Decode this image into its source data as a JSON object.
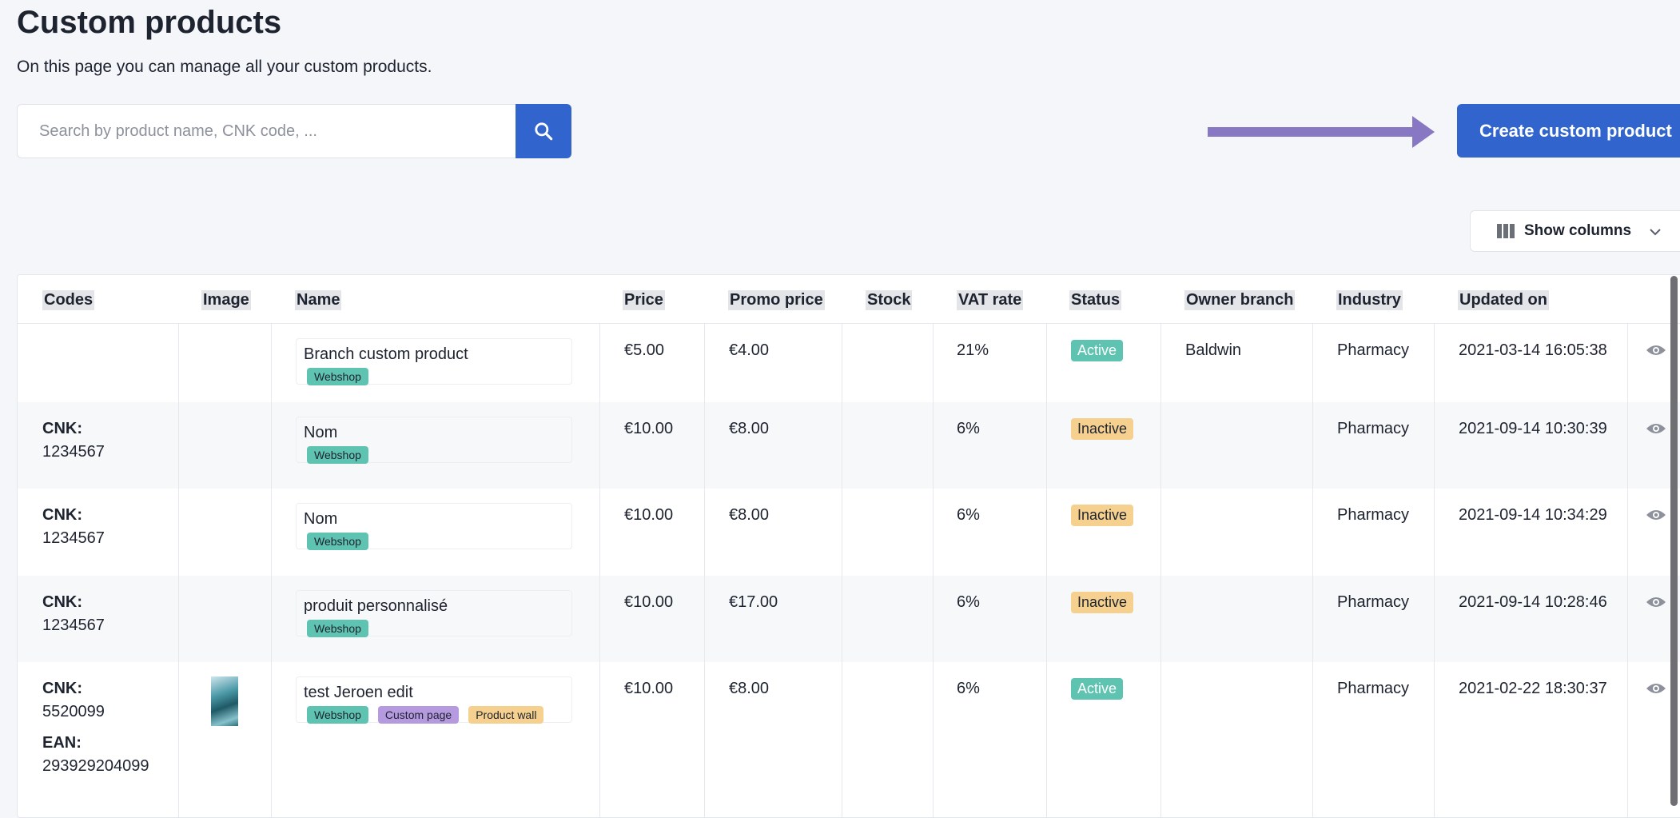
{
  "header": {
    "title": "Custom products",
    "subtitle": "On this page you can manage all your custom products."
  },
  "search": {
    "placeholder": "Search by product name, CNK code, ..."
  },
  "actions": {
    "create_label": "Create custom product",
    "show_columns_label": "Show columns"
  },
  "colors": {
    "primary": "#3164cc",
    "arrow": "#8878c3",
    "active": "#5ec3b0",
    "inactive": "#f5d08e",
    "custom_page": "#b59ae0"
  },
  "table": {
    "columns": [
      "Codes",
      "Image",
      "Name",
      "Price",
      "Promo price",
      "Stock",
      "VAT rate",
      "Status",
      "Owner branch",
      "Industry",
      "Updated on"
    ],
    "rows": [
      {
        "codes": [],
        "name": "Branch custom product",
        "tags": [
          "Webshop"
        ],
        "price": "€5.00",
        "promo": "€4.00",
        "stock": "",
        "vat": "21%",
        "status": "Active",
        "owner": "Baldwin",
        "industry": "Pharmacy",
        "updated": "2021-03-14 16:05:38"
      },
      {
        "codes": [
          {
            "label": "CNK:",
            "value": "1234567"
          }
        ],
        "name": "Nom",
        "tags": [
          "Webshop"
        ],
        "price": "€10.00",
        "promo": "€8.00",
        "stock": "",
        "vat": "6%",
        "status": "Inactive",
        "owner": "",
        "industry": "Pharmacy",
        "updated": "2021-09-14 10:30:39"
      },
      {
        "codes": [
          {
            "label": "CNK:",
            "value": "1234567"
          }
        ],
        "name": "Nom",
        "tags": [
          "Webshop"
        ],
        "price": "€10.00",
        "promo": "€8.00",
        "stock": "",
        "vat": "6%",
        "status": "Inactive",
        "owner": "",
        "industry": "Pharmacy",
        "updated": "2021-09-14 10:34:29"
      },
      {
        "codes": [
          {
            "label": "CNK:",
            "value": "1234567"
          }
        ],
        "name": "produit personnalisé",
        "tags": [
          "Webshop"
        ],
        "price": "€10.00",
        "promo": "€17.00",
        "stock": "",
        "vat": "6%",
        "status": "Inactive",
        "owner": "",
        "industry": "Pharmacy",
        "updated": "2021-09-14 10:28:46"
      },
      {
        "codes": [
          {
            "label": "CNK:",
            "value": "5520099"
          },
          {
            "label": "EAN:",
            "value": "293929204099"
          }
        ],
        "name": "test Jeroen edit",
        "tags": [
          "Webshop",
          "Custom page",
          "Product wall"
        ],
        "price": "€10.00",
        "promo": "€8.00",
        "stock": "",
        "vat": "6%",
        "status": "Active",
        "owner": "",
        "industry": "Pharmacy",
        "updated": "2021-02-22 18:30:37"
      }
    ]
  }
}
